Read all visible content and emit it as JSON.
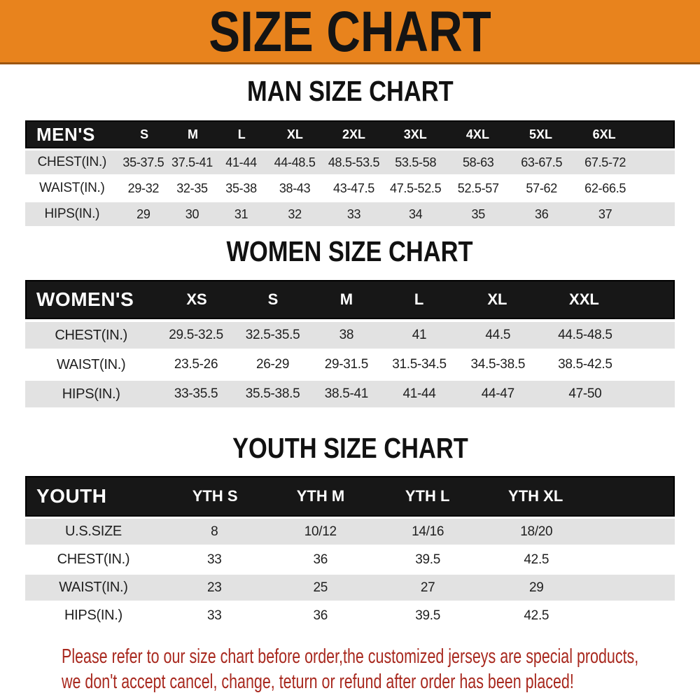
{
  "banner": {
    "title": "SIZE CHART",
    "bg_color": "#E8831D",
    "border_color": "#9C5510",
    "text_color": "#141414"
  },
  "sections": [
    {
      "heading": "MAN SIZE CHART",
      "table": {
        "label": "MEN'S",
        "columns": [
          "S",
          "M",
          "L",
          "XL",
          "2XL",
          "3XL",
          "4XL",
          "5XL",
          "6XL"
        ],
        "rows": [
          {
            "label": "CHEST(IN.)",
            "values": [
              "35-37.5",
              "37.5-41",
              "41-44",
              "44-48.5",
              "48.5-53.5",
              "53.5-58",
              "58-63",
              "63-67.5",
              "67.5-72"
            ]
          },
          {
            "label": "WAIST(IN.)",
            "values": [
              "29-32",
              "32-35",
              "35-38",
              "38-43",
              "43-47.5",
              "47.5-52.5",
              "52.5-57",
              "57-62",
              "62-66.5"
            ]
          },
          {
            "label": "HIPS(IN.)",
            "values": [
              "29",
              "30",
              "31",
              "32",
              "33",
              "34",
              "35",
              "36",
              "37"
            ]
          }
        ]
      }
    },
    {
      "heading": "WOMEN SIZE CHART",
      "table": {
        "label": "WOMEN'S",
        "columns": [
          "XS",
          "S",
          "M",
          "L",
          "XL",
          "XXL"
        ],
        "rows": [
          {
            "label": "CHEST(IN.)",
            "values": [
              "29.5-32.5",
              "32.5-35.5",
              "38",
              "41",
              "44.5",
              "44.5-48.5"
            ]
          },
          {
            "label": "WAIST(IN.)",
            "values": [
              "23.5-26",
              "26-29",
              "29-31.5",
              "31.5-34.5",
              "34.5-38.5",
              "38.5-42.5"
            ]
          },
          {
            "label": "HIPS(IN.)",
            "values": [
              "33-35.5",
              "35.5-38.5",
              "38.5-41",
              "41-44",
              "44-47",
              "47-50"
            ]
          }
        ]
      }
    },
    {
      "heading": "YOUTH SIZE CHART",
      "table": {
        "label": "YOUTH",
        "columns": [
          "YTH S",
          "YTH M",
          "YTH L",
          "YTH XL"
        ],
        "rows": [
          {
            "label": "U.S.SIZE",
            "values": [
              "8",
              "10/12",
              "14/16",
              "18/20"
            ]
          },
          {
            "label": "CHEST(IN.)",
            "values": [
              "33",
              "36",
              "39.5",
              "42.5"
            ]
          },
          {
            "label": "WAIST(IN.)",
            "values": [
              "23",
              "25",
              "27",
              "29"
            ]
          },
          {
            "label": "HIPS(IN.)",
            "values": [
              "33",
              "36",
              "39.5",
              "42.5"
            ]
          }
        ]
      }
    }
  ],
  "disclaimer": {
    "lines": [
      "Please refer to our size chart before order,the customized jerseys are special products,",
      "we don't accept cancel, change, teturn or refund after order has been placed!"
    ],
    "color": "#A8281E"
  },
  "colors": {
    "header_bar_black": "#171717",
    "row_gray": "#E2E2E2",
    "row_white": "#FFFFFF",
    "table_text": "#1F1F1F"
  }
}
